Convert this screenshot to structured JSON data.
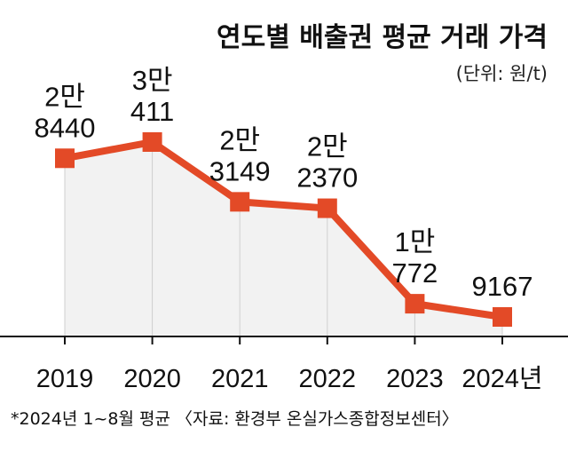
{
  "title": "연도별 배출권 평균 거래 가격",
  "unit_note": "(단위: 원/t)",
  "footnote": "*2024년 1~8월 평균 〈자료: 환경부 온실가스종합정보센터〉",
  "colors": {
    "line": "#e34a27",
    "area": "#f2f2f2",
    "axis": "#111111"
  },
  "chart_data": {
    "type": "line",
    "title": "연도별 배출권 평균 거래 가격",
    "categories": [
      "2019",
      "2020",
      "2021",
      "2022",
      "2023",
      "2024년"
    ],
    "series": [
      {
        "values": [
          28440,
          30411,
          23149,
          22370,
          10772,
          9167
        ]
      }
    ],
    "data_labels": [
      [
        "2만",
        "8440"
      ],
      [
        "3만",
        "411"
      ],
      [
        "2만",
        "3149"
      ],
      [
        "2만",
        "2370"
      ],
      [
        "1만",
        "772"
      ],
      [
        "9167"
      ]
    ],
    "ylabel": "원/t",
    "grid": false,
    "legend": "none"
  }
}
